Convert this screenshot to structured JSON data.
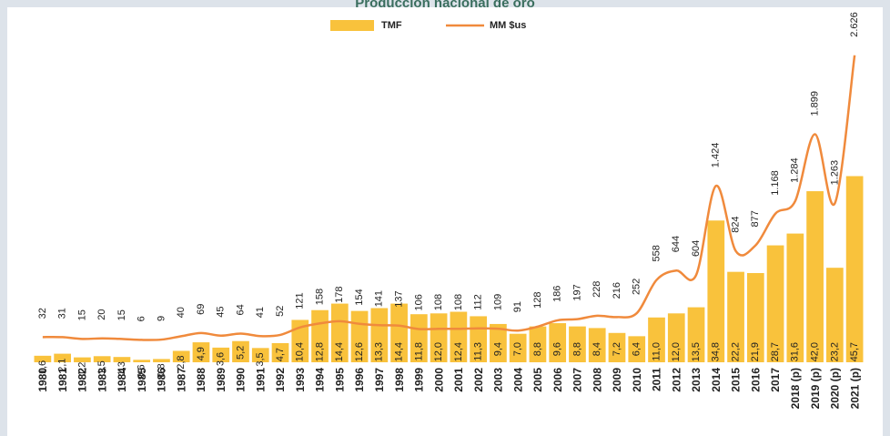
{
  "chart_data": {
    "type": "bar-line",
    "title": "Producción nacional de oro",
    "categories": [
      "1980",
      "1981",
      "1982",
      "1983",
      "1984",
      "1985",
      "1986",
      "1987",
      "1988",
      "1989",
      "1990",
      "1991",
      "1992",
      "1993",
      "1994",
      "1995",
      "1996",
      "1997",
      "1998",
      "1999",
      "2000",
      "2001",
      "2002",
      "2003",
      "2004",
      "2005",
      "2006",
      "2007",
      "2008",
      "2009",
      "2010",
      "2011",
      "2012",
      "2013",
      "2014",
      "2015",
      "2016",
      "2017",
      "2018 (p)",
      "2019 (p)",
      "2020 (p)",
      "2021 (p)"
    ],
    "series": [
      {
        "name": "TMF",
        "type": "bar",
        "color": "#f9c23c",
        "values": [
          1.6,
          2.1,
          1.2,
          1.5,
          1.3,
          0.6,
          0.8,
          2.8,
          4.9,
          3.6,
          5.2,
          3.5,
          4.7,
          10.4,
          12.8,
          14.4,
          12.6,
          13.3,
          14.4,
          11.8,
          12.0,
          12.4,
          11.3,
          9.4,
          7.0,
          8.8,
          9.6,
          8.8,
          8.4,
          7.2,
          6.4,
          11.0,
          12.0,
          13.5,
          34.8,
          22.2,
          21.9,
          28.7,
          31.6,
          42.0,
          23.2,
          45.7
        ],
        "value_labels": [
          "1,6",
          "2,1",
          "1,2",
          "1,5",
          "1,3",
          "0,6",
          "0,8",
          "2,8",
          "4,9",
          "3,6",
          "5,2",
          "3,5",
          "4,7",
          "10,4",
          "12,8",
          "14,4",
          "12,6",
          "13,3",
          "14,4",
          "11,8",
          "12,0",
          "12,4",
          "11,3",
          "9,4",
          "7,0",
          "8,8",
          "9,6",
          "8,8",
          "8,4",
          "7,2",
          "6,4",
          "11,0",
          "12,0",
          "13,5",
          "34,8",
          "22,2",
          "21,9",
          "28,7",
          "31,6",
          "42,0",
          "23,2",
          "45,7"
        ]
      },
      {
        "name": "MM $us",
        "type": "line",
        "axis": "y2",
        "color": "#f08a3c",
        "values": [
          32,
          31,
          15,
          20,
          15,
          6,
          9,
          40,
          69,
          45,
          64,
          41,
          52,
          121,
          158,
          178,
          154,
          141,
          137,
          106,
          108,
          108,
          112,
          109,
          91,
          128,
          186,
          197,
          228,
          216,
          252,
          558,
          644,
          604,
          1424,
          824,
          877,
          1168,
          1284,
          1899,
          1263,
          2626
        ],
        "value_labels": [
          "32",
          "31",
          "15",
          "20",
          "15",
          "6",
          "9",
          "40",
          "69",
          "45",
          "64",
          "41",
          "52",
          "121",
          "158",
          "178",
          "154",
          "141",
          "137",
          "106",
          "108",
          "108",
          "112",
          "109",
          "91",
          "128",
          "186",
          "197",
          "228",
          "216",
          "252",
          "558",
          "644",
          "604",
          "1.424",
          "824",
          "877",
          "1.168",
          "1.284",
          "1.899",
          "1.263",
          "2.626"
        ]
      }
    ],
    "ylim": [
      0,
      80
    ],
    "y2lim": [
      -200,
      2800
    ],
    "legend": "top"
  }
}
